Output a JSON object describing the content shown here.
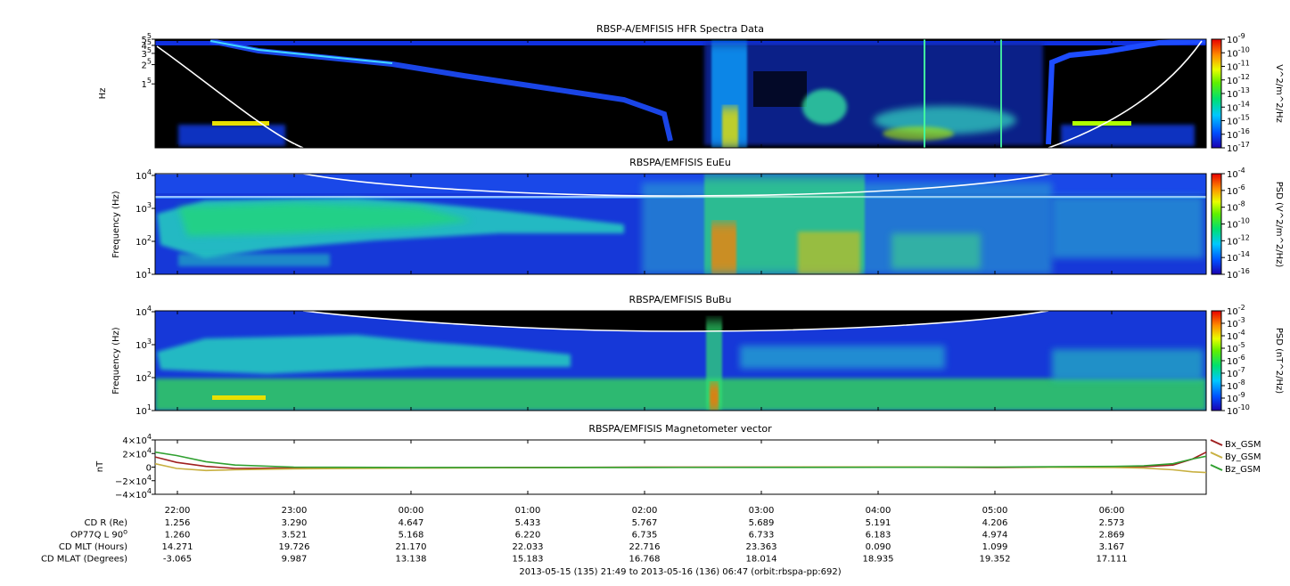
{
  "footer": "2013-05-15 (135) 21:49 to 2013-05-16 (136) 06:47 (orbit:rbspa-pp:692)",
  "time_ticks": [
    "22:00",
    "23:00",
    "00:00",
    "01:00",
    "02:00",
    "03:00",
    "04:00",
    "05:00",
    "06:00"
  ],
  "ephemeris": [
    {
      "label": "CD R (Re)",
      "values": [
        "1.256",
        "3.290",
        "4.647",
        "5.433",
        "5.767",
        "5.689",
        "5.191",
        "4.206",
        "2.573"
      ]
    },
    {
      "label": "OP77Q L 90",
      "sup": "o",
      "values": [
        "1.260",
        "3.521",
        "5.168",
        "6.220",
        "6.735",
        "6.733",
        "6.183",
        "4.974",
        "2.869"
      ]
    },
    {
      "label": "CD MLT (Hours)",
      "values": [
        "14.271",
        "19.726",
        "21.170",
        "22.033",
        "22.716",
        "23.363",
        "0.090",
        "1.099",
        "3.167"
      ]
    },
    {
      "label": "CD MLAT (Degrees)",
      "values": [
        "-3.065",
        "9.987",
        "13.138",
        "15.183",
        "16.768",
        "18.014",
        "18.935",
        "19.352",
        "17.111"
      ]
    }
  ],
  "colors": {
    "spec_bg": "#000000",
    "trace_white": "#ffffff",
    "bx": "#a02020",
    "by": "#c8b040",
    "bz": "#30a030"
  },
  "chart_data": [
    {
      "type": "heatmap",
      "title": "RBSP-A/EMFISIS  HFR Spectra Data",
      "ylabel": "Hz",
      "yticks": [
        {
          "b": "5",
          "e": "5"
        },
        {
          "b": "4",
          "e": "5"
        },
        {
          "b": "3",
          "e": "5"
        },
        {
          "b": "2",
          "e": "5"
        },
        {
          "b": "1",
          "e": "5"
        }
      ],
      "ylim": [
        10000,
        500000
      ],
      "y_scale": "log",
      "colorbar": {
        "label": "V^2/m^2/Hz",
        "ticks": [
          {
            "b": "10",
            "e": "-9"
          },
          {
            "b": "10",
            "e": "-10"
          },
          {
            "b": "10",
            "e": "-11"
          },
          {
            "b": "10",
            "e": "-12"
          },
          {
            "b": "10",
            "e": "-13"
          },
          {
            "b": "10",
            "e": "-14"
          },
          {
            "b": "10",
            "e": "-15"
          },
          {
            "b": "10",
            "e": "-16"
          },
          {
            "b": "10",
            "e": "-17"
          }
        ]
      }
    },
    {
      "type": "heatmap",
      "title": "RBSPA/EMFISIS  EuEu",
      "ylabel": "Frequency (Hz)",
      "yticks": [
        {
          "b": "10",
          "e": "4"
        },
        {
          "b": "10",
          "e": "3"
        },
        {
          "b": "10",
          "e": "2"
        },
        {
          "b": "10",
          "e": "1"
        }
      ],
      "ylim": [
        10,
        10000
      ],
      "y_scale": "log",
      "colorbar": {
        "label": "PSD (V^2/m^2/Hz)",
        "ticks": [
          {
            "b": "10",
            "e": "-4"
          },
          {
            "b": "10",
            "e": "-6"
          },
          {
            "b": "10",
            "e": "-8"
          },
          {
            "b": "10",
            "e": "-10"
          },
          {
            "b": "10",
            "e": "-12"
          },
          {
            "b": "10",
            "e": "-14"
          },
          {
            "b": "10",
            "e": "-16"
          }
        ]
      }
    },
    {
      "type": "heatmap",
      "title": "RBSPA/EMFISIS  BuBu",
      "ylabel": "Frequency (Hz)",
      "yticks": [
        {
          "b": "10",
          "e": "4"
        },
        {
          "b": "10",
          "e": "3"
        },
        {
          "b": "10",
          "e": "2"
        },
        {
          "b": "10",
          "e": "1"
        }
      ],
      "ylim": [
        10,
        10000
      ],
      "y_scale": "log",
      "colorbar": {
        "label": "PSD (nT^2/Hz)",
        "ticks": [
          {
            "b": "10",
            "e": "-2"
          },
          {
            "b": "10",
            "e": "-3"
          },
          {
            "b": "10",
            "e": "-4"
          },
          {
            "b": "10",
            "e": "-5"
          },
          {
            "b": "10",
            "e": "-6"
          },
          {
            "b": "10",
            "e": "-7"
          },
          {
            "b": "10",
            "e": "-8"
          },
          {
            "b": "10",
            "e": "-9"
          },
          {
            "b": "10",
            "e": "-10"
          }
        ]
      }
    },
    {
      "type": "line",
      "title": "RBSPA/EMFISIS  Magnetometer vector",
      "ylabel": "nT",
      "yticks": [
        {
          "b": "4",
          "x": "×10",
          "e": "4"
        },
        {
          "b": "2",
          "x": "×10",
          "e": "4"
        },
        {
          "b": "0",
          "x": "",
          "e": ""
        },
        {
          "b": "−2",
          "x": "×10",
          "e": "4"
        },
        {
          "b": "−4",
          "x": "×10",
          "e": "4"
        }
      ],
      "ylim": [
        -40000,
        40000
      ],
      "x": [
        "21:49",
        "22:00",
        "22:15",
        "22:30",
        "23:00",
        "00:00",
        "01:00",
        "02:00",
        "03:00",
        "04:00",
        "05:00",
        "06:00",
        "06:15",
        "06:30",
        "06:40",
        "06:47"
      ],
      "series": [
        {
          "name": "Bx_GSM",
          "values": [
            15000,
            7000,
            1000,
            -2000,
            -1500,
            -1000,
            -500,
            0,
            0,
            0,
            -500,
            0,
            800,
            3000,
            12000,
            22000
          ]
        },
        {
          "name": "By_GSM",
          "values": [
            5000,
            -2000,
            -5000,
            -4000,
            -2500,
            -1500,
            -800,
            -300,
            0,
            200,
            0,
            -500,
            -1500,
            -4000,
            -7000,
            -8000
          ]
        },
        {
          "name": "Bz_GSM",
          "values": [
            22000,
            17000,
            8000,
            3000,
            0,
            -500,
            -600,
            -500,
            -400,
            -300,
            0,
            1000,
            2000,
            5000,
            12000,
            16000
          ]
        }
      ]
    }
  ]
}
